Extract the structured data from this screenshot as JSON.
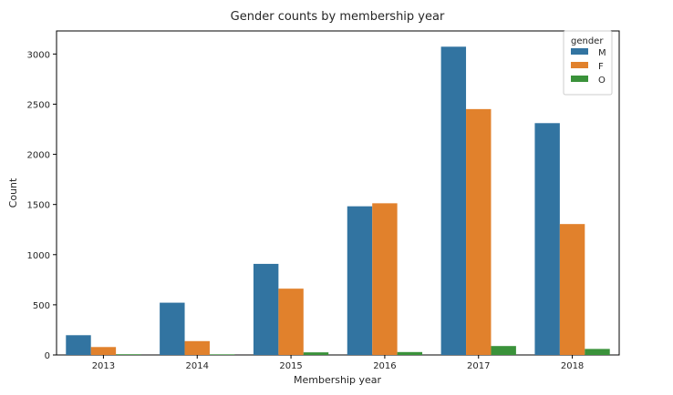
{
  "chart_data": {
    "type": "bar",
    "title": "Gender counts by membership year",
    "xlabel": "Membership year",
    "ylabel": "Count",
    "categories": [
      "2013",
      "2014",
      "2015",
      "2016",
      "2017",
      "2018"
    ],
    "series": [
      {
        "name": "M",
        "color": "#3274a1",
        "values": [
          197,
          521,
          908,
          1482,
          3073,
          2311
        ]
      },
      {
        "name": "F",
        "color": "#e1812c",
        "values": [
          79,
          138,
          661,
          1512,
          2451,
          1305
        ]
      },
      {
        "name": "O",
        "color": "#3a923a",
        "values": [
          7,
          6,
          26,
          29,
          89,
          60
        ]
      }
    ],
    "ylim": [
      0,
      3230
    ],
    "yticks": [
      0,
      500,
      1000,
      1500,
      2000,
      2500,
      3000
    ],
    "grid": false,
    "legend": {
      "title": "gender",
      "placement": "top-right"
    }
  }
}
